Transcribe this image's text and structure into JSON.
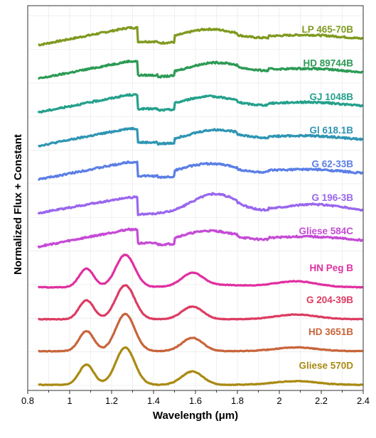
{
  "chart_data": {
    "type": "line",
    "xlabel": "Wavelength (μm)",
    "ylabel": "Normalized Flux + Constant",
    "xlim": [
      0.8,
      2.4
    ],
    "x_ticks": [
      "0.8",
      "1",
      "1.2",
      "1.4",
      "1.6",
      "1.8",
      "2",
      "2.2",
      "2.4"
    ],
    "y_ticks_labeled": false,
    "grid": true,
    "legend": "inline-right",
    "x_range_data": [
      0.85,
      2.4
    ],
    "series": [
      {
        "name": "LP 465-70B",
        "color": "#7f9a1f",
        "offset": 10.0,
        "kind": "L"
      },
      {
        "name": "HD 89744B",
        "color": "#2c9a55",
        "offset": 9.0,
        "kind": "L"
      },
      {
        "name": "GJ 1048B",
        "color": "#24a08c",
        "offset": 8.0,
        "kind": "L"
      },
      {
        "name": "Gl 618.1B",
        "color": "#2e95b3",
        "offset": 7.0,
        "kind": "L"
      },
      {
        "name": "G 62-33B",
        "color": "#5b7ee6",
        "offset": 6.0,
        "kind": "L"
      },
      {
        "name": "G 196-3B",
        "color": "#9966ee",
        "offset": 5.0,
        "kind": "Lred"
      },
      {
        "name": "Gliese 584C",
        "color": "#c54ad6",
        "offset": 4.0,
        "kind": "L"
      },
      {
        "name": "HN Peg B",
        "color": "#e02fa0",
        "offset": 2.9,
        "kind": "T1"
      },
      {
        "name": "G 204-39B",
        "color": "#dc3c62",
        "offset": 1.95,
        "kind": "T2"
      },
      {
        "name": "HD 3651B",
        "color": "#c8643a",
        "offset": 1.0,
        "kind": "T3"
      },
      {
        "name": "Gliese 570D",
        "color": "#a98a12",
        "offset": 0.0,
        "kind": "T3"
      }
    ],
    "y_range": [
      -0.15,
      11.3
    ]
  }
}
